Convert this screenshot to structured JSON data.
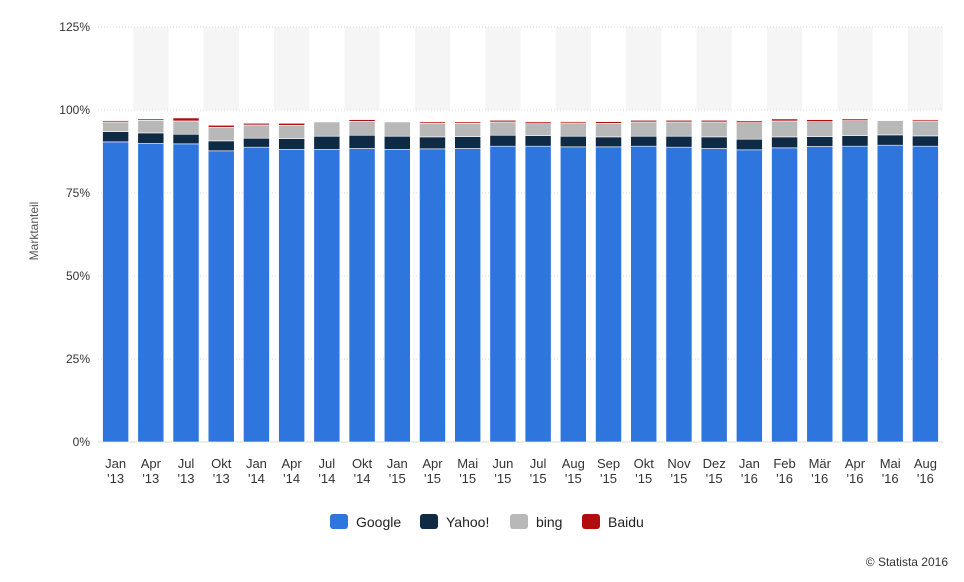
{
  "chart_data": {
    "type": "bar",
    "stacked": true,
    "ylabel": "Marktanteil",
    "ylim": [
      0,
      125
    ],
    "yticks": [
      0,
      25,
      50,
      75,
      100,
      125
    ],
    "ytick_labels": [
      "0%",
      "25%",
      "50%",
      "75%",
      "100%",
      "125%"
    ],
    "grid": true,
    "legend_position": "bottom",
    "categories": [
      [
        "Jan",
        "'13"
      ],
      [
        "Apr",
        "'13"
      ],
      [
        "Jul",
        "'13"
      ],
      [
        "Okt",
        "'13"
      ],
      [
        "Jan",
        "'14"
      ],
      [
        "Apr",
        "'14"
      ],
      [
        "Jul",
        "'14"
      ],
      [
        "Okt",
        "'14"
      ],
      [
        "Jan",
        "'15"
      ],
      [
        "Apr",
        "'15"
      ],
      [
        "Mai",
        "'15"
      ],
      [
        "Jun",
        "'15"
      ],
      [
        "Jul",
        "'15"
      ],
      [
        "Aug",
        "'15"
      ],
      [
        "Sep",
        "'15"
      ],
      [
        "Okt",
        "'15"
      ],
      [
        "Nov",
        "'15"
      ],
      [
        "Dez",
        "'15"
      ],
      [
        "Jan",
        "'16"
      ],
      [
        "Feb",
        "'16"
      ],
      [
        "Mär",
        "'16"
      ],
      [
        "Apr",
        "'16"
      ],
      [
        "Mai",
        "'16"
      ],
      [
        "Aug",
        "'16"
      ]
    ],
    "series": [
      {
        "name": "Google",
        "color": "#2f75de",
        "values": [
          90.4,
          89.9,
          89.8,
          87.7,
          88.8,
          88.1,
          88.1,
          88.4,
          88.1,
          88.3,
          88.4,
          89.1,
          89.1,
          88.9,
          88.9,
          89.1,
          88.8,
          88.4,
          88.0,
          88.6,
          89.0,
          89.1,
          89.4,
          89.1
        ],
        "role": "primary"
      },
      {
        "name": "Yahoo!",
        "color": "#0e2a45",
        "values": [
          3.1,
          3.2,
          2.9,
          3.0,
          2.7,
          3.3,
          4.0,
          4.0,
          4.0,
          3.6,
          3.6,
          3.3,
          3.2,
          3.2,
          3.0,
          3.0,
          3.3,
          3.5,
          3.2,
          3.3,
          3.0,
          3.2,
          3.1,
          3.1
        ]
      },
      {
        "name": "bing",
        "color": "#b8b8b8",
        "values": [
          2.9,
          3.8,
          4.0,
          4.1,
          4.0,
          4.0,
          4.3,
          4.2,
          4.3,
          4.1,
          4.0,
          4.0,
          3.6,
          4.0,
          4.1,
          4.3,
          4.3,
          4.5,
          5.0,
          4.8,
          4.5,
          4.5,
          4.3,
          4.5
        ]
      },
      {
        "name": "Baidu",
        "color": "#b10d0d",
        "values": [
          0.4,
          0.4,
          0.9,
          0.6,
          0.5,
          0.6,
          0.0,
          0.5,
          0.0,
          0.4,
          0.4,
          0.5,
          0.5,
          0.4,
          0.5,
          0.5,
          0.5,
          0.5,
          0.5,
          0.6,
          0.6,
          0.5,
          0.0,
          0.4
        ]
      }
    ],
    "colors": {
      "band": "#f5f5f5",
      "grid": "#d9d9d9",
      "tick_label": "#333333",
      "axis_label": "#555555"
    }
  },
  "credit": "© Statista 2016"
}
